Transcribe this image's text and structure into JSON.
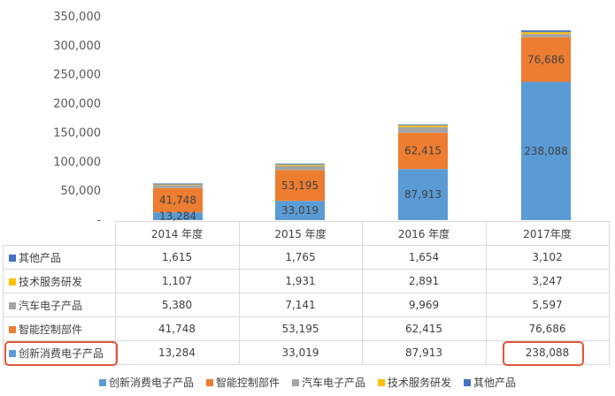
{
  "chart_data": {
    "type": "bar",
    "stacked": true,
    "categories": [
      "2014 年度",
      "2015 年度",
      "2016 年度",
      "2017年度"
    ],
    "series": [
      {
        "name": "创新消费电子产品",
        "values": [
          13284,
          33019,
          87913,
          238088
        ],
        "color": "#5b9bd5",
        "value_labels": [
          "13,284",
          "33,019",
          "87,913",
          "238,088"
        ]
      },
      {
        "name": "智能控制部件",
        "values": [
          41748,
          53195,
          62415,
          76686
        ],
        "color": "#ed7d31",
        "value_labels": [
          "41,748",
          "53,195",
          "62,415",
          "76,686"
        ]
      },
      {
        "name": "汽车电子产品",
        "values": [
          5380,
          7141,
          9969,
          5597
        ],
        "color": "#a5a5a5",
        "value_labels": [
          "5,380",
          "7,141",
          "9,969",
          "5,597"
        ]
      },
      {
        "name": "技术服务研发",
        "values": [
          1107,
          1931,
          2891,
          3247
        ],
        "color": "#ffc000",
        "value_labels": [
          "1,107",
          "1,931",
          "2,891",
          "3,247"
        ]
      },
      {
        "name": "其他产品",
        "values": [
          1615,
          1765,
          1654,
          3102
        ],
        "color": "#4472c4",
        "value_labels": [
          "1,615",
          "1,765",
          "1,654",
          "3,102"
        ]
      }
    ],
    "ylim": [
      0,
      350000
    ],
    "yticks": [
      0,
      50000,
      100000,
      150000,
      200000,
      250000,
      300000,
      350000
    ],
    "ytick_labels": [
      "-",
      "50,000",
      "100,000",
      "150,000",
      "200,000",
      "250,000",
      "300,000",
      "350,000"
    ],
    "grid": false,
    "legend_position": "bottom",
    "data_table": true,
    "highlighted_cells": [
      "创新消费电子产品 row header",
      "创新消费电子产品 2017年度"
    ]
  }
}
